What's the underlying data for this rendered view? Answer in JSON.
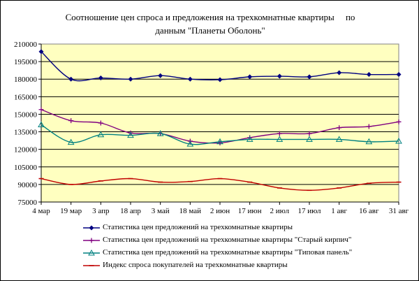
{
  "chart_data": {
    "type": "line",
    "title_line1": "Соотношение цен спроса и предложения на трехкомнатные квартиры     по",
    "title_line2": "данным \"Планеты Оболонь\"",
    "y_ticks": [
      "210000",
      "195000",
      "180000",
      "165000",
      "150000",
      "135000",
      "120000",
      "105000",
      "90000",
      "75000"
    ],
    "ylim": [
      75000,
      210000
    ],
    "x_tick_labels": [
      "4 мар",
      "19 мар",
      "3 апр",
      "18 апр",
      "3 май",
      "18 май",
      "2 июн",
      "17 июн",
      "2 июл",
      "17 июл",
      "1 авг",
      "16 авг",
      "31 авг"
    ],
    "x": [
      0,
      1,
      2,
      3,
      4,
      5,
      6,
      7,
      8,
      9,
      10,
      11,
      12
    ],
    "plot_background": "#FFFFC0",
    "grid": true,
    "legend_position": "bottom",
    "series": [
      {
        "name": "Статистика цен предложений на трехкомнатные квартиры",
        "color": "#000080",
        "marker": "diamond",
        "values": [
          203500,
          180000,
          181000,
          180000,
          183000,
          180000,
          179500,
          182000,
          182500,
          182000,
          185500,
          184000,
          184000
        ]
      },
      {
        "name": "Статистика цен предложений на трехкомнатные квартиры \"Старый кирпич\"",
        "color": "#800080",
        "marker": "plus",
        "values": [
          154000,
          144500,
          142500,
          134000,
          133500,
          127000,
          125500,
          130000,
          133500,
          133500,
          138500,
          139500,
          143500
        ]
      },
      {
        "name": "Статистика цен предложений на трехкомнатные квартиры \"Типовая панель\"",
        "color": "#008080",
        "marker": "triangle",
        "values": [
          141000,
          126000,
          132500,
          132000,
          133500,
          124500,
          126500,
          128500,
          128500,
          128500,
          128500,
          126500,
          127000
        ]
      },
      {
        "name": "Индекс спроса покупателей  на трехкомнатные квартиры",
        "color": "#C00000",
        "marker": "dash",
        "values": [
          95000,
          90000,
          93000,
          95000,
          92000,
          92500,
          95000,
          92000,
          87000,
          85000,
          87000,
          91000,
          92000
        ]
      }
    ]
  }
}
